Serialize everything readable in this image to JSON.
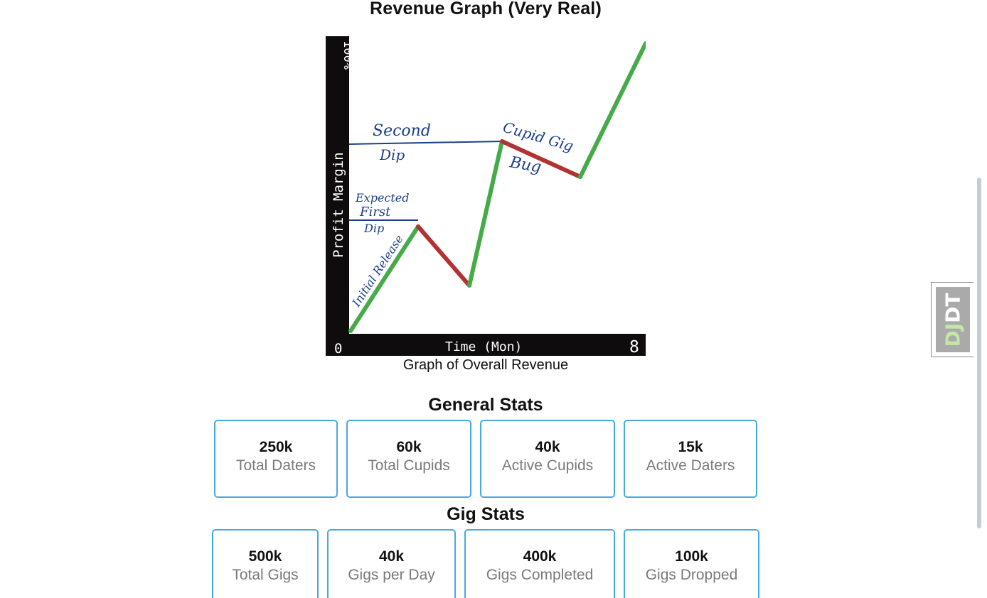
{
  "graph": {
    "title": "Revenue Graph (Very Real)",
    "caption": "Graph of Overall Revenue",
    "image_text": {
      "y_top": "100%",
      "y_axis": "Profit Margin",
      "x_start": "0",
      "x_axis": "Time (Mon)",
      "x_end": "8",
      "ann_second_dip_1": "Second",
      "ann_second_dip_2": "Dip",
      "ann_first_1": "Expected",
      "ann_first_2": "First",
      "ann_first_3": "Dip",
      "ann_initial": "Initial Release",
      "ann_cupid_1": "Cupid Gig",
      "ann_cupid_2": "Bug"
    },
    "colors": {
      "axis": "#0e0c0c",
      "up": "#45aa48",
      "down": "#b23232",
      "ink": "#1e3f8c"
    }
  },
  "general_stats": {
    "title": "General Stats",
    "items": [
      {
        "value": "250k",
        "label": "Total Daters"
      },
      {
        "value": "60k",
        "label": "Total Cupids"
      },
      {
        "value": "40k",
        "label": "Active Cupids"
      },
      {
        "value": "15k",
        "label": "Active Daters"
      }
    ]
  },
  "gig_stats": {
    "title": "Gig Stats",
    "items": [
      {
        "value": "500k",
        "label": "Total Gigs"
      },
      {
        "value": "40k",
        "label": "Gigs per Day"
      },
      {
        "value": "400k",
        "label": "Gigs Completed"
      },
      {
        "value": "100k",
        "label": "Gigs Dropped"
      }
    ]
  },
  "toolbar": {
    "handle_dj": "DJ",
    "handle_dt": "DT"
  }
}
